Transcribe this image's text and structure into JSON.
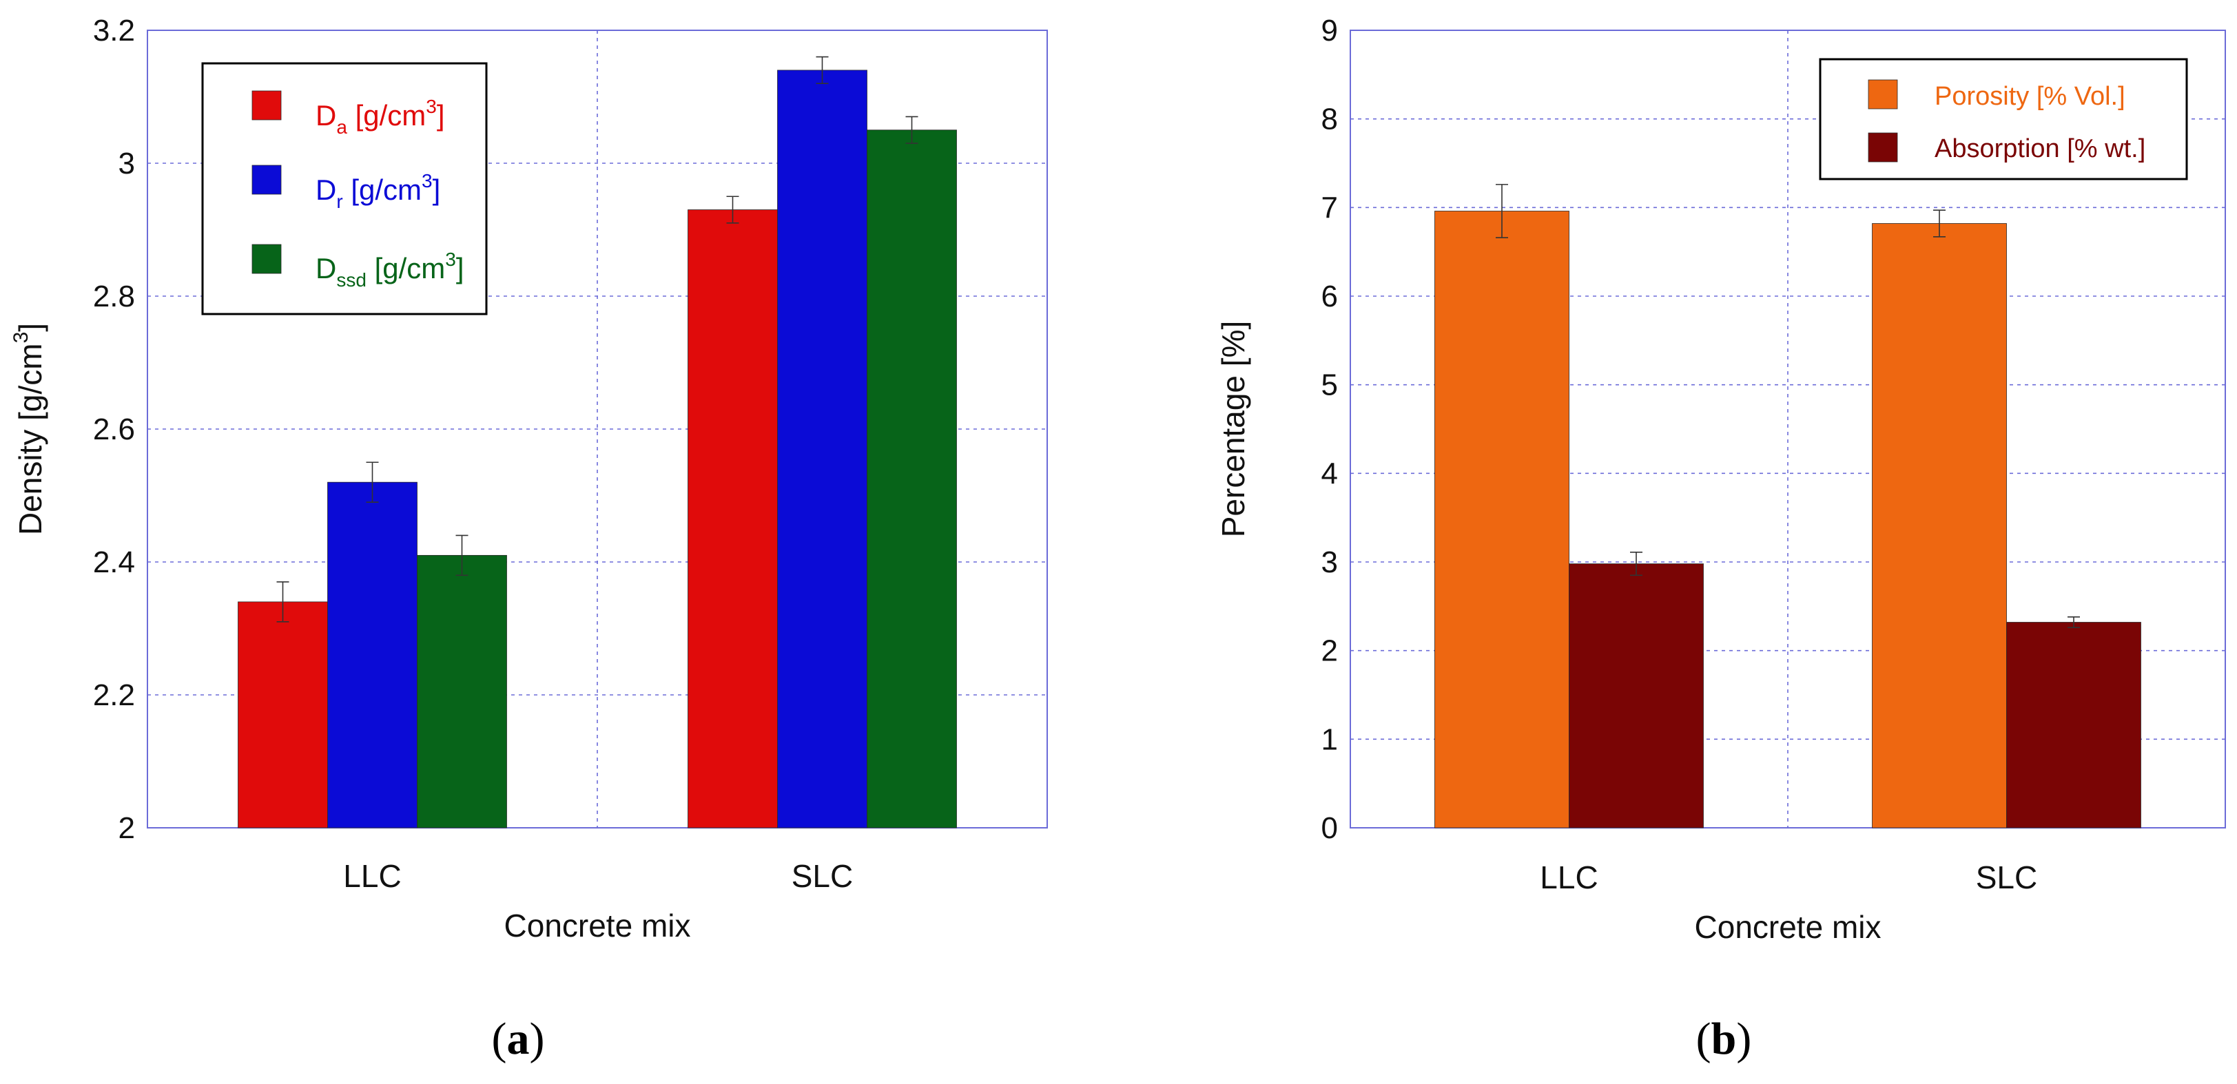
{
  "chart_data": [
    {
      "type": "bar",
      "panel_label": "a",
      "title": "",
      "xlabel": "Concrete mix",
      "ylabel": "Density [g/cm3]",
      "ylabel_main": "Density [g/cm",
      "ylabel_sup": "3",
      "ylabel_tail": "]",
      "ylim": [
        2,
        3.2
      ],
      "yticks": [
        "2",
        "2.2",
        "2.4",
        "2.6",
        "2.8",
        "3",
        "3.2"
      ],
      "ytick_values": [
        2,
        2.2,
        2.4,
        2.6,
        2.8,
        3,
        3.2
      ],
      "categories": [
        "LLC",
        "SLC"
      ],
      "grid": true,
      "legend_position": "top-left",
      "series": [
        {
          "name": "Da [g/cm3]",
          "symbol": "D",
          "sub": "a",
          "unit": " [g/cm",
          "sup": "3",
          "tail": "]",
          "color": "#e00b0b",
          "values": [
            2.34,
            2.93
          ],
          "errors": [
            0.03,
            0.02
          ]
        },
        {
          "name": "Dr [g/cm3]",
          "symbol": "D",
          "sub": "r",
          "unit": " [g/cm",
          "sup": "3",
          "tail": "]",
          "color": "#0b0bd6",
          "values": [
            2.52,
            3.14
          ],
          "errors": [
            0.03,
            0.02
          ]
        },
        {
          "name": "Dssd [g/cm3]",
          "symbol": "D",
          "sub": "ssd",
          "unit": " [g/cm",
          "sup": "3",
          "tail": "]",
          "color": "#076419",
          "values": [
            2.41,
            3.05
          ],
          "errors": [
            0.03,
            0.02
          ]
        }
      ]
    },
    {
      "type": "bar",
      "panel_label": "b",
      "title": "",
      "xlabel": "Concrete mix",
      "ylabel": "Percentage [%]",
      "ylim": [
        0,
        9
      ],
      "yticks": [
        "0",
        "1",
        "2",
        "3",
        "4",
        "5",
        "6",
        "7",
        "8",
        "9"
      ],
      "ytick_values": [
        0,
        1,
        2,
        3,
        4,
        5,
        6,
        7,
        8,
        9
      ],
      "categories": [
        "LLC",
        "SLC"
      ],
      "grid": true,
      "legend_position": "top-right",
      "series": [
        {
          "name": "Porosity [% Vol.]",
          "color": "#ee6711",
          "values": [
            6.96,
            6.82
          ],
          "errors": [
            0.3,
            0.15
          ]
        },
        {
          "name": "Absorption [% wt.]",
          "color": "#7a0505",
          "values": [
            2.98,
            2.32
          ],
          "errors": [
            0.13,
            0.06
          ]
        }
      ]
    }
  ]
}
